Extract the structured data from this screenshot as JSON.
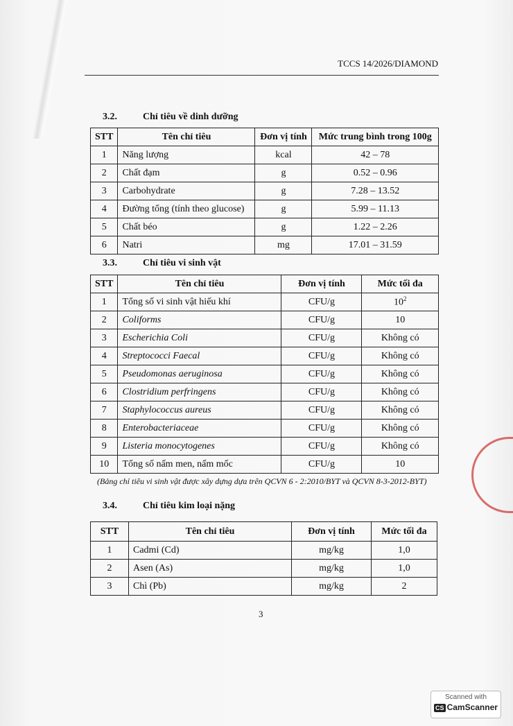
{
  "header": {
    "code": "TCCS 14/2026/DIAMOND"
  },
  "nutrition": {
    "number": "3.2.",
    "title": "Chỉ tiêu về dinh dưỡng",
    "columns": [
      "STT",
      "Tên chỉ tiêu",
      "Đơn vị tính",
      "Mức trung bình trong 100g"
    ],
    "rows": [
      [
        "1",
        "Năng lượng",
        "kcal",
        "42 – 78"
      ],
      [
        "2",
        "Chất đạm",
        "g",
        "0.52 – 0.96"
      ],
      [
        "3",
        "Carbohydrate",
        "g",
        "7.28 – 13.52"
      ],
      [
        "4",
        "Đường tổng (tính theo glucose)",
        "g",
        "5.99 – 11.13"
      ],
      [
        "5",
        "Chất béo",
        "g",
        "1.22 – 2.26"
      ],
      [
        "6",
        "Natri",
        "mg",
        "17.01 – 31.59"
      ]
    ]
  },
  "micro": {
    "number": "3.3.",
    "title": "Chỉ tiêu vi sinh vật",
    "columns": [
      "STT",
      "Tên chỉ tiêu",
      "Đơn vị tính",
      "Mức tối đa"
    ],
    "rows": [
      [
        "1",
        "Tổng số vi sinh vật hiếu khí",
        "CFU/g",
        "10",
        "2"
      ],
      [
        "2",
        "Coliforms",
        "CFU/g",
        "10"
      ],
      [
        "3",
        "Escherichia Coli",
        "CFU/g",
        "Không có"
      ],
      [
        "4",
        "Streptococci Faecal",
        "CFU/g",
        "Không có"
      ],
      [
        "5",
        "Pseudomonas aeruginosa",
        "CFU/g",
        "Không có"
      ],
      [
        "6",
        "Clostridium perfringens",
        "CFU/g",
        "Không có"
      ],
      [
        "7",
        "Staphylococcus aureus",
        "CFU/g",
        "Không có"
      ],
      [
        "8",
        "Enterobacteriaceae",
        "CFU/g",
        "Không có"
      ],
      [
        "9",
        "Listeria monocytogenes",
        "CFU/g",
        "Không có"
      ],
      [
        "10",
        "Tổng số nấm men, nấm mốc",
        "CFU/g",
        "10"
      ]
    ],
    "note": "(Bảng chỉ tiêu vi sinh vật được xây dựng dựa trên QCVN 6 - 2:2010/BYT và QCVN 8-3-2012-BYT)"
  },
  "metals": {
    "number": "3.4.",
    "title": "Chỉ tiêu kim loại nặng",
    "columns": [
      "STT",
      "Tên chỉ tiêu",
      "Đơn vị tính",
      "Mức tối đa"
    ],
    "rows": [
      [
        "1",
        "Cadmi (Cd)",
        "mg/kg",
        "1,0"
      ],
      [
        "2",
        "Asen (As)",
        "mg/kg",
        "1,0"
      ],
      [
        "3",
        "Chì (Pb)",
        "mg/kg",
        "2"
      ]
    ]
  },
  "page_number": "3",
  "watermark": {
    "line1": "Scanned with",
    "logo": "CS",
    "brand": "CamScanner"
  },
  "stamp_color": "#cc3333"
}
